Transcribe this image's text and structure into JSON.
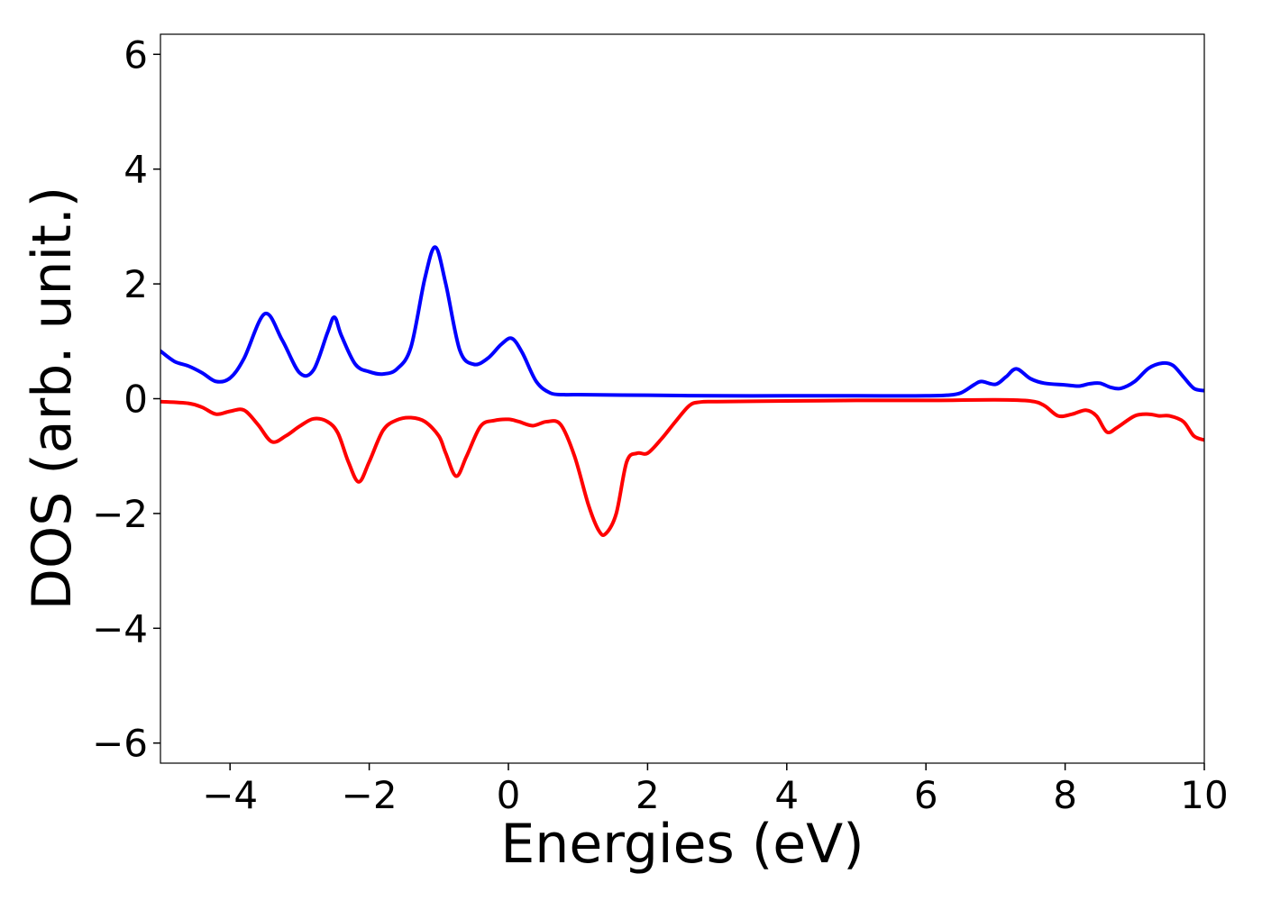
{
  "chart_data": {
    "type": "line",
    "xlabel": "Energies (eV)",
    "ylabel": "DOS (arb. unit.)",
    "xlim": [
      -5,
      10
    ],
    "ylim": [
      -6.35,
      6.35
    ],
    "xticks": [
      -4,
      -2,
      0,
      2,
      4,
      6,
      8,
      10
    ],
    "xtick_labels": [
      "−4",
      "−2",
      "0",
      "2",
      "4",
      "6",
      "8",
      "10"
    ],
    "yticks": [
      -6,
      -4,
      -2,
      0,
      2,
      4,
      6
    ],
    "ytick_labels": [
      "−6",
      "−4",
      "−2",
      "0",
      "2",
      "4",
      "6"
    ],
    "grid": false,
    "legend": "none",
    "series": [
      {
        "color": "#0000ff",
        "x": [
          -5.0,
          -4.8,
          -4.6,
          -4.4,
          -4.2,
          -4.0,
          -3.8,
          -3.5,
          -3.25,
          -3.0,
          -2.8,
          -2.6,
          -2.5,
          -2.4,
          -2.2,
          -2.0,
          -1.8,
          -1.6,
          -1.4,
          -1.2,
          -1.05,
          -0.9,
          -0.7,
          -0.5,
          -0.3,
          -0.1,
          0.05,
          0.2,
          0.4,
          0.6,
          0.8,
          1.0,
          2.0,
          3.0,
          4.0,
          5.0,
          6.0,
          6.3,
          6.5,
          6.7,
          6.8,
          7.0,
          7.15,
          7.3,
          7.5,
          7.7,
          8.0,
          8.2,
          8.35,
          8.5,
          8.65,
          8.8,
          9.0,
          9.2,
          9.4,
          9.55,
          9.7,
          9.85,
          10.0
        ],
        "y": [
          0.83,
          0.65,
          0.57,
          0.45,
          0.3,
          0.36,
          0.7,
          1.48,
          1.02,
          0.45,
          0.5,
          1.15,
          1.42,
          1.1,
          0.6,
          0.47,
          0.43,
          0.52,
          0.9,
          2.1,
          2.64,
          2.0,
          0.85,
          0.6,
          0.7,
          0.95,
          1.05,
          0.8,
          0.3,
          0.1,
          0.07,
          0.07,
          0.06,
          0.05,
          0.05,
          0.05,
          0.05,
          0.06,
          0.1,
          0.25,
          0.3,
          0.25,
          0.38,
          0.52,
          0.35,
          0.27,
          0.24,
          0.22,
          0.26,
          0.27,
          0.2,
          0.18,
          0.3,
          0.53,
          0.62,
          0.58,
          0.38,
          0.18,
          0.14
        ]
      },
      {
        "color": "#ff0000",
        "x": [
          -5.0,
          -4.6,
          -4.4,
          -4.2,
          -4.0,
          -3.8,
          -3.6,
          -3.4,
          -3.2,
          -3.0,
          -2.8,
          -2.6,
          -2.45,
          -2.3,
          -2.15,
          -2.0,
          -1.8,
          -1.6,
          -1.4,
          -1.2,
          -1.0,
          -0.9,
          -0.75,
          -0.6,
          -0.4,
          -0.2,
          0.0,
          0.15,
          0.35,
          0.55,
          0.75,
          0.95,
          1.15,
          1.3,
          1.4,
          1.55,
          1.7,
          1.85,
          2.0,
          2.2,
          2.4,
          2.6,
          2.75,
          3.0,
          4.0,
          5.0,
          6.0,
          7.0,
          7.5,
          7.7,
          7.9,
          8.1,
          8.3,
          8.45,
          8.6,
          8.75,
          9.0,
          9.2,
          9.35,
          9.5,
          9.7,
          9.85,
          10.0
        ],
        "y": [
          -0.05,
          -0.08,
          -0.15,
          -0.27,
          -0.22,
          -0.2,
          -0.45,
          -0.75,
          -0.65,
          -0.48,
          -0.35,
          -0.4,
          -0.6,
          -1.1,
          -1.45,
          -1.1,
          -0.55,
          -0.37,
          -0.33,
          -0.4,
          -0.65,
          -0.95,
          -1.35,
          -1.0,
          -0.48,
          -0.38,
          -0.36,
          -0.4,
          -0.47,
          -0.4,
          -0.45,
          -1.0,
          -1.85,
          -2.3,
          -2.35,
          -2.0,
          -1.1,
          -0.95,
          -0.95,
          -0.7,
          -0.4,
          -0.12,
          -0.06,
          -0.05,
          -0.04,
          -0.03,
          -0.03,
          -0.02,
          -0.04,
          -0.12,
          -0.3,
          -0.27,
          -0.2,
          -0.3,
          -0.58,
          -0.5,
          -0.3,
          -0.27,
          -0.3,
          -0.3,
          -0.4,
          -0.65,
          -0.72
        ]
      }
    ]
  }
}
